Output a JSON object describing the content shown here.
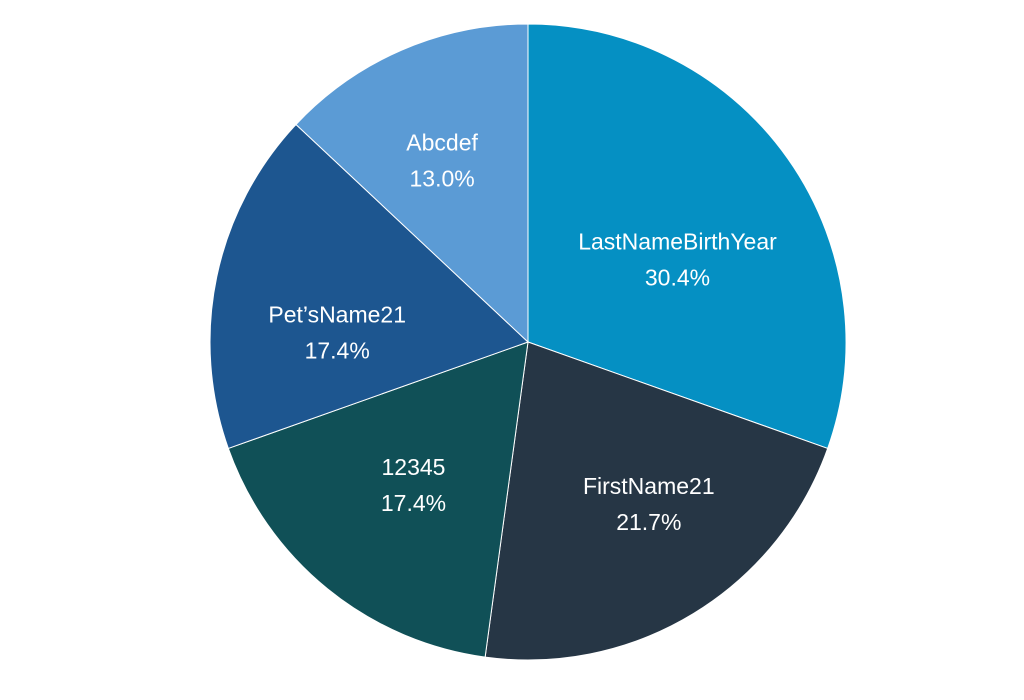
{
  "chart_data": {
    "type": "pie",
    "title": "",
    "start_angle_deg": 0,
    "direction": "clockwise",
    "slices": [
      {
        "label": "LastNameBirthYear",
        "value": 30.4,
        "display": "30.4%",
        "color": "#0590c3"
      },
      {
        "label": "FirstName21",
        "value": 21.7,
        "display": "21.7%",
        "color": "#263645"
      },
      {
        "label": "12345",
        "value": 17.4,
        "display": "17.4%",
        "color": "#105057"
      },
      {
        "label": "Pet’sName21",
        "value": 17.4,
        "display": "17.4%",
        "color": "#1d5690"
      },
      {
        "label": "Abcdef",
        "value": 13.0,
        "display": "13.0%",
        "color": "#5b9bd5"
      }
    ],
    "label_color": "#ffffff",
    "slice_border_color": "#ffffff",
    "legend": "none"
  }
}
